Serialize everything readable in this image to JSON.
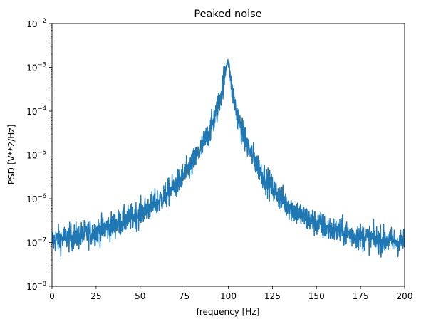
{
  "chart_data": {
    "type": "line",
    "title": "Peaked noise",
    "xlabel": "frequency [Hz]",
    "ylabel": "PSD [V**2/Hz]",
    "xlim": [
      0,
      200
    ],
    "ylim": [
      1e-08,
      0.01
    ],
    "yscale": "log",
    "grid": false,
    "x_ticks": [
      0,
      25,
      50,
      75,
      100,
      125,
      150,
      175,
      200
    ],
    "x_tick_labels": [
      "0",
      "25",
      "50",
      "75",
      "100",
      "125",
      "150",
      "175",
      "200"
    ],
    "y_ticks": [
      1e-08,
      1e-07,
      1e-06,
      1e-05,
      0.0001,
      0.001,
      0.01
    ],
    "y_tick_labels": [
      {
        "base": "10",
        "exp": "−8"
      },
      {
        "base": "10",
        "exp": "−7"
      },
      {
        "base": "10",
        "exp": "−6"
      },
      {
        "base": "10",
        "exp": "−5"
      },
      {
        "base": "10",
        "exp": "−4"
      },
      {
        "base": "10",
        "exp": "−3"
      },
      {
        "base": "10",
        "exp": "−2"
      }
    ],
    "series": [
      {
        "color": "#1f77b4",
        "x": [
          0,
          5,
          10,
          15,
          20,
          25,
          30,
          35,
          40,
          45,
          50,
          55,
          60,
          65,
          70,
          75,
          80,
          85,
          88,
          90,
          92,
          94,
          96,
          97,
          98,
          99,
          99.5,
          100,
          100.5,
          101,
          102,
          103,
          104,
          106,
          108,
          110,
          112,
          115,
          120,
          125,
          130,
          135,
          140,
          145,
          150,
          155,
          160,
          165,
          170,
          175,
          180,
          185,
          190,
          195,
          200
        ],
        "y": [
          1.1e-07,
          1.2e-07,
          1.3e-07,
          1.4e-07,
          1.6e-07,
          1.8e-07,
          2.1e-07,
          2.5e-07,
          3e-07,
          3.7e-07,
          4.7e-07,
          6.2e-07,
          8.5e-07,
          1.25e-06,
          2e-06,
          3.4e-06,
          6.5e-06,
          1.5e-05,
          2.6e-05,
          4e-05,
          6.5e-05,
          0.00012,
          0.00026,
          0.00043,
          0.0007,
          0.0012,
          0.0015,
          0.0013,
          0.001,
          0.00065,
          0.00035,
          0.0002,
          0.000125,
          6e-05,
          3.3e-05,
          2e-05,
          1.3e-05,
          7.5e-06,
          3.3e-06,
          1.7e-06,
          1e-06,
          6.5e-07,
          4.5e-07,
          3.4e-07,
          2.7e-07,
          2.2e-07,
          1.9e-07,
          1.7e-07,
          1.5e-07,
          1.35e-07,
          1.25e-07,
          1.15e-07,
          1.1e-07,
          1.05e-07,
          1e-07
        ]
      }
    ]
  }
}
